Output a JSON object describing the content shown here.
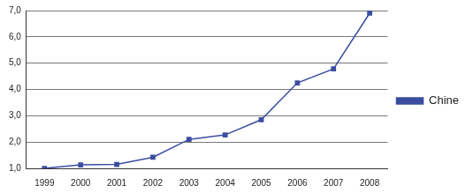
{
  "chart_data": {
    "type": "line",
    "categories": [
      "1999",
      "2000",
      "2001",
      "2002",
      "2003",
      "2004",
      "2005",
      "2006",
      "2007",
      "2008"
    ],
    "series": [
      {
        "name": "Chine",
        "color": "#3b4da0",
        "marker": "square",
        "values": [
          1.0,
          1.13,
          1.15,
          1.42,
          2.1,
          2.27,
          2.85,
          4.25,
          4.78,
          6.9
        ]
      }
    ],
    "ylim": [
      1,
      7
    ],
    "yticks": [
      {
        "value": 1,
        "label": "1,0"
      },
      {
        "value": 2,
        "label": "2,0"
      },
      {
        "value": 3,
        "label": "3,0"
      },
      {
        "value": 4,
        "label": "4,0"
      },
      {
        "value": 5,
        "label": "5,0"
      },
      {
        "value": 6,
        "label": "6,0"
      },
      {
        "value": 7,
        "label": "7,0"
      }
    ],
    "grid": true,
    "legend": "right"
  }
}
